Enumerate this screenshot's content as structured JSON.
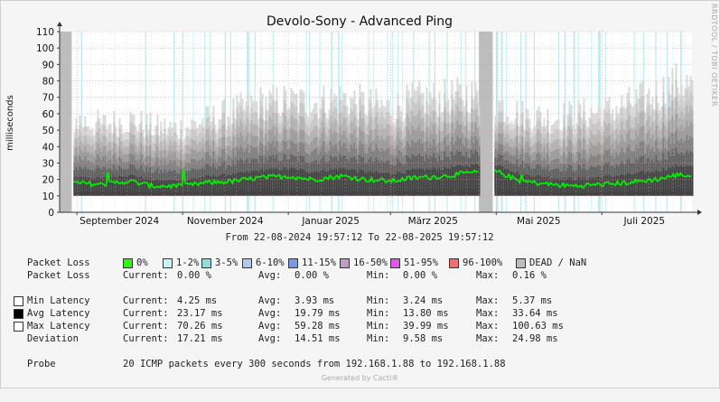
{
  "chart_data": {
    "type": "area",
    "title": "Devolo-Sony - Advanced Ping",
    "ylabel": "milliseconds",
    "ylim": [
      0,
      110
    ],
    "yticks": [
      0,
      10,
      20,
      30,
      40,
      50,
      60,
      70,
      80,
      90,
      100,
      110
    ],
    "x_range": [
      "2024-08-22",
      "2025-08-22"
    ],
    "x_ticks": [
      {
        "label": "September 2024",
        "date": "2024-09-01"
      },
      {
        "label": "November 2024",
        "date": "2024-11-01"
      },
      {
        "label": "Januar 2025",
        "date": "2025-01-01"
      },
      {
        "label": "März 2025",
        "date": "2025-03-01"
      },
      {
        "label": "Mai 2025",
        "date": "2025-05-01"
      },
      {
        "label": "Juli 2025",
        "date": "2025-07-01"
      }
    ],
    "grid": true,
    "dead_periods": [
      {
        "from": "2024-08-22",
        "to": "2024-08-29"
      },
      {
        "from": "2025-04-21",
        "to": "2025-04-29"
      }
    ],
    "series": [
      {
        "name": "Avg Latency",
        "color": "#00ee00",
        "x": [
          "2024-08-29",
          "2024-09-15",
          "2024-10-01",
          "2024-10-15",
          "2024-11-01",
          "2024-11-15",
          "2024-12-01",
          "2024-12-15",
          "2025-01-01",
          "2025-01-15",
          "2025-02-01",
          "2025-02-15",
          "2025-03-01",
          "2025-03-15",
          "2025-04-01",
          "2025-04-15",
          "2025-05-01",
          "2025-05-15",
          "2025-06-01",
          "2025-06-15",
          "2025-07-01",
          "2025-07-15",
          "2025-08-01",
          "2025-08-15",
          "2025-08-22"
        ],
        "values": [
          18,
          17,
          19,
          16,
          16,
          18,
          19,
          21,
          22,
          20,
          22,
          20,
          19,
          21,
          22,
          24,
          25,
          19,
          17,
          16,
          17,
          18,
          20,
          23,
          22
        ]
      },
      {
        "name": "Max Latency",
        "color": "#cccccc",
        "x": [
          "2024-08-29",
          "2024-09-15",
          "2024-10-01",
          "2024-10-15",
          "2024-11-01",
          "2024-11-15",
          "2024-12-01",
          "2024-12-15",
          "2025-01-01",
          "2025-01-15",
          "2025-02-01",
          "2025-02-15",
          "2025-03-01",
          "2025-03-15",
          "2025-04-01",
          "2025-04-15",
          "2025-05-01",
          "2025-05-15",
          "2025-06-01",
          "2025-06-15",
          "2025-07-01",
          "2025-07-15",
          "2025-08-01",
          "2025-08-15",
          "2025-08-22"
        ],
        "values": [
          55,
          52,
          55,
          50,
          50,
          55,
          60,
          65,
          66,
          65,
          68,
          64,
          62,
          67,
          68,
          70,
          65,
          58,
          56,
          58,
          60,
          64,
          70,
          78,
          74
        ]
      },
      {
        "name": "Min Latency",
        "color": "#555555",
        "x": [
          "2024-08-29",
          "2025-08-22"
        ],
        "values": [
          4,
          4
        ]
      }
    ]
  },
  "date_range": {
    "from_label": "From",
    "from": "22-08-2024 19:57:12",
    "to_label": "To",
    "to": "22-08-2025 19:57:12"
  },
  "legend": {
    "packet_loss_label": "Packet Loss",
    "loss_buckets": [
      {
        "label": "0%",
        "color": "#26ff00"
      },
      {
        "label": "1-2%",
        "color": "#c8f5f3"
      },
      {
        "label": "3-5%",
        "color": "#8fdede"
      },
      {
        "label": "6-10%",
        "color": "#a6cdf2"
      },
      {
        "label": "11-15%",
        "color": "#7b98e6"
      },
      {
        "label": "16-50%",
        "color": "#c39ac9"
      },
      {
        "label": "51-95%",
        "color": "#e84ff0"
      },
      {
        "label": "96-100%",
        "color": "#ee6f6f"
      },
      {
        "label": "DEAD / NaN",
        "color": "#bdbdbd"
      }
    ],
    "stats_rows": [
      {
        "swatch": null,
        "label": "Packet Loss",
        "current": "0.00 %",
        "avg": "0.00 %",
        "min": "0.00 %",
        "max": "0.16 %"
      },
      {
        "swatch": "#ffffff",
        "label": "Min Latency",
        "current": "4.25 ms",
        "avg": "3.93 ms",
        "min": "3.24 ms",
        "max": "5.37 ms"
      },
      {
        "swatch": "#000000",
        "label": "Avg Latency",
        "current": "23.17 ms",
        "avg": "19.79 ms",
        "min": "13.80 ms",
        "max": "33.64 ms"
      },
      {
        "swatch": "#ffffff",
        "label": "Max Latency",
        "current": "70.26 ms",
        "avg": "59.28 ms",
        "min": "39.99 ms",
        "max": "100.63 ms"
      },
      {
        "swatch": null,
        "label": "Deviation",
        "current": "17.21 ms",
        "avg": "14.51 ms",
        "min": "9.58 ms",
        "max": "24.98 ms"
      }
    ],
    "current_label": "Current:",
    "avg_label": "Avg:",
    "min_label": "Min:",
    "max_label": "Max:",
    "probe_label": "Probe",
    "probe_text": "20 ICMP packets every 300 seconds from 192.168.1.88 to 192.168.1.88"
  },
  "footer": "Generated by Cacti®",
  "vertical_label": "RRDTOOL / TOBI OETIKER"
}
